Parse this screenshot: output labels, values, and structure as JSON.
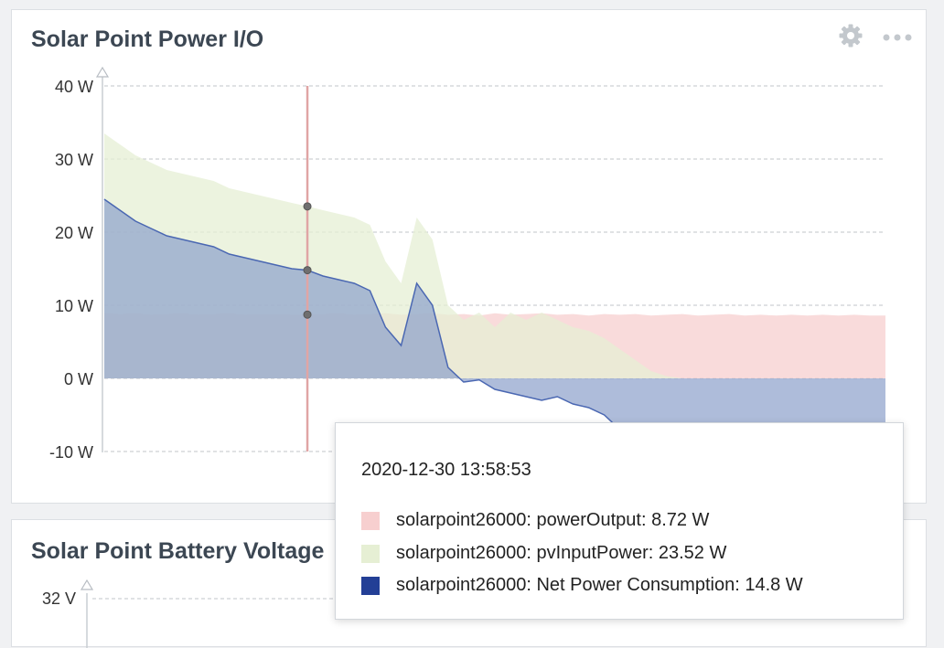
{
  "panels": [
    {
      "title": "Solar Point Power I/O",
      "icons": [
        "gear-icon",
        "more-horizontal-icon"
      ]
    },
    {
      "title": "Solar Point Battery Voltage",
      "y_tick_visible": "32 V"
    }
  ],
  "chart_data": {
    "type": "area",
    "title": "Solar Point Power I/O",
    "xlabel": "",
    "ylabel": "",
    "ylim": [
      -10,
      40
    ],
    "y_ticks": [
      "40 W",
      "30 W",
      "20 W",
      "10 W",
      "0 W",
      "-10 W"
    ],
    "y_tick_values": [
      40,
      30,
      20,
      10,
      0,
      -10
    ],
    "grid": "horizontal-dashed",
    "x_range": [
      0,
      100
    ],
    "hover_x": 26,
    "series": [
      {
        "name": "solarpoint26000: powerOutput",
        "color": "#f7cfcf",
        "x": [
          0,
          2,
          4,
          6,
          8,
          10,
          12,
          14,
          16,
          18,
          20,
          22,
          24,
          26,
          28,
          30,
          32,
          34,
          36,
          38,
          40,
          42,
          44,
          46,
          48,
          50,
          52,
          54,
          56,
          58,
          60,
          62,
          64,
          66,
          68,
          70,
          72,
          74,
          76,
          78,
          80,
          82,
          84,
          86,
          88,
          90,
          92,
          94,
          96,
          98,
          100
        ],
        "values": [
          8.9,
          8.8,
          8.9,
          8.7,
          8.8,
          8.9,
          8.7,
          8.8,
          8.9,
          8.7,
          8.8,
          8.8,
          8.7,
          8.72,
          8.8,
          8.9,
          8.7,
          8.8,
          8.9,
          8.7,
          8.8,
          8.9,
          8.7,
          8.8,
          8.6,
          8.9,
          8.7,
          8.8,
          8.9,
          8.7,
          8.8,
          8.6,
          8.8,
          8.7,
          8.8,
          8.6,
          8.7,
          8.8,
          8.6,
          8.7,
          8.8,
          8.6,
          8.7,
          8.6,
          8.7,
          8.6,
          8.7,
          8.6,
          8.7,
          8.6,
          8.6
        ]
      },
      {
        "name": "solarpoint26000: pvInputPower",
        "color": "#e6efd4",
        "x": [
          0,
          2,
          4,
          6,
          8,
          10,
          12,
          14,
          16,
          18,
          20,
          22,
          24,
          26,
          28,
          30,
          32,
          34,
          36,
          38,
          40,
          42,
          44,
          46,
          48,
          50,
          52,
          54,
          56,
          58,
          60,
          62,
          64,
          66,
          68,
          70,
          72,
          74,
          76,
          78,
          80,
          82,
          84,
          86,
          88,
          90,
          92,
          94,
          96,
          98,
          100
        ],
        "values": [
          33.5,
          32,
          30.5,
          29.5,
          28.5,
          28,
          27.5,
          27,
          26,
          25.5,
          25,
          24.5,
          24,
          23.52,
          23,
          22.5,
          22,
          21,
          16,
          13,
          22,
          19,
          10,
          8,
          9,
          7,
          9,
          8,
          9,
          8,
          7,
          6.5,
          5.5,
          4,
          2.5,
          1,
          0.3,
          0,
          0,
          0,
          0,
          0,
          0,
          0,
          0,
          0,
          0,
          0,
          0,
          0,
          0
        ]
      },
      {
        "name": "solarpoint26000: Net Power Consumption",
        "color": "#233f96",
        "x": [
          0,
          2,
          4,
          6,
          8,
          10,
          12,
          14,
          16,
          18,
          20,
          22,
          24,
          26,
          28,
          30,
          32,
          34,
          36,
          38,
          40,
          42,
          44,
          46,
          48,
          50,
          52,
          54,
          56,
          58,
          60,
          62,
          64,
          66,
          68,
          70,
          72,
          74,
          76,
          78,
          80,
          82,
          84,
          86,
          88,
          90,
          92,
          94,
          96,
          98,
          100
        ],
        "values": [
          24.5,
          23,
          21.5,
          20.5,
          19.5,
          19,
          18.5,
          18,
          17,
          16.5,
          16,
          15.5,
          15,
          14.8,
          14,
          13.5,
          13,
          12,
          7,
          4.5,
          13,
          10,
          1.5,
          -0.5,
          -0.2,
          -1.5,
          -2,
          -2.5,
          -3,
          -2.5,
          -3.5,
          -4,
          -5,
          -7,
          -8,
          -9,
          -10,
          -10.5,
          -11,
          -11.5,
          -11.5,
          -11.5,
          -11.5,
          -11.5,
          -11.5,
          -11.5,
          -11.5,
          -11.5,
          -11.5,
          -11.5,
          -11.5
        ]
      }
    ]
  },
  "tooltip": {
    "timestamp": "2020-12-30 13:58:53",
    "rows": [
      {
        "label": "solarpoint26000: powerOutput: 8.72 W",
        "color": "#f7cfcf"
      },
      {
        "label": "solarpoint26000: pvInputPower: 23.52 W",
        "color": "#e6efd4"
      },
      {
        "label": "solarpoint26000: Net Power Consumption: 14.8 W",
        "color": "#233f96"
      }
    ]
  }
}
